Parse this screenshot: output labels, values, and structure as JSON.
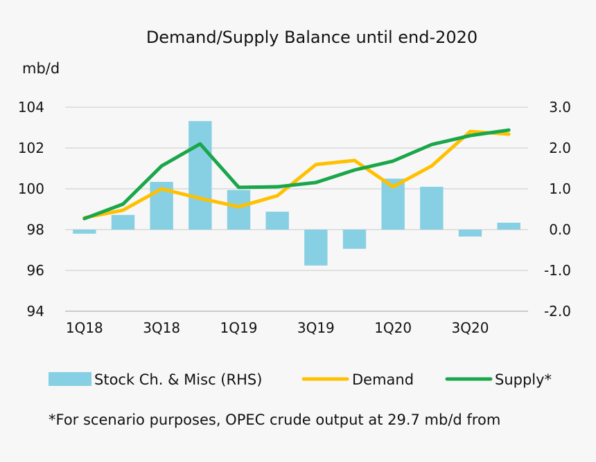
{
  "chart_data": {
    "type": "bar+line",
    "title": "Demand/Supply Balance until end-2020",
    "ylabel": "mb/d",
    "categories": [
      "1Q18",
      "2Q18",
      "3Q18",
      "4Q18",
      "1Q19",
      "2Q19",
      "3Q19",
      "4Q19",
      "1Q20",
      "2Q20",
      "3Q20",
      "4Q20"
    ],
    "x_tick_labels": [
      "1Q18",
      "",
      "3Q18",
      "",
      "1Q19",
      "",
      "3Q19",
      "",
      "1Q20",
      "",
      "3Q20",
      ""
    ],
    "ylim": [
      94,
      104
    ],
    "yticks": [
      "94",
      "96",
      "98",
      "100",
      "102",
      "104"
    ],
    "y2lim": [
      -2.0,
      3.0
    ],
    "y2ticks": [
      "-2.0",
      "-1.0",
      "0.0",
      "1.0",
      "2.0",
      "3.0"
    ],
    "grid": true,
    "legend_position": "bottom",
    "series": [
      {
        "name": "Stock Ch. & Misc (RHS)",
        "type": "bar",
        "axis": "right",
        "color": "#87d0e3",
        "values": [
          -0.1,
          0.36,
          1.17,
          2.66,
          0.97,
          0.44,
          -0.88,
          -0.47,
          1.25,
          1.05,
          -0.17,
          0.17
        ]
      },
      {
        "name": "Demand",
        "type": "line",
        "axis": "left",
        "color": "#ffc000",
        "values": [
          98.58,
          98.95,
          100.0,
          99.53,
          99.12,
          99.66,
          101.19,
          101.39,
          100.1,
          101.12,
          102.81,
          102.68
        ]
      },
      {
        "name": "Supply*",
        "type": "line",
        "axis": "left",
        "color": "#1aa64a",
        "values": [
          98.54,
          99.25,
          101.12,
          102.2,
          100.07,
          100.1,
          100.31,
          100.92,
          101.36,
          102.17,
          102.61,
          102.88
        ]
      }
    ],
    "footnote": "*For scenario purposes, OPEC crude output at 29.7 mb/d from"
  }
}
